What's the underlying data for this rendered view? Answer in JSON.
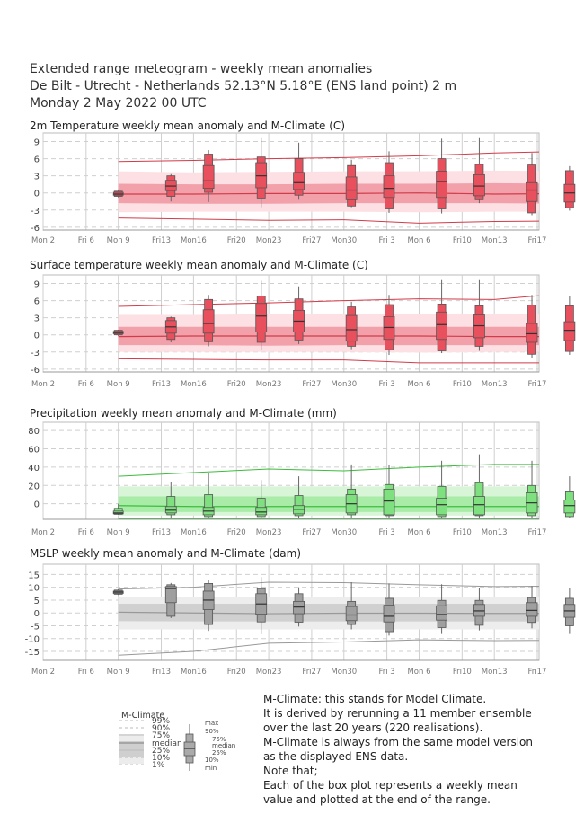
{
  "header": {
    "line1": "Extended range meteogram - weekly mean anomalies",
    "line2": "De Bilt - Utrecht - Netherlands 52.13°N 5.18°E (ENS land point) 2 m",
    "line3": "Monday  2 May 2022 00 UTC"
  },
  "x_ticks": [
    "Mon 2",
    "Fri 6",
    "Mon 9",
    "Fri13",
    "Mon16",
    "Fri20",
    "Mon23",
    "Fri27",
    "Mon30",
    "Fri 3",
    "Mon 6",
    "Fri10",
    "Mon13",
    "Fri17"
  ],
  "chart_data": [
    {
      "type": "boxplot",
      "title": "2m Temperature weekly mean anomaly and M-Climate (C)",
      "ylim": [
        -6.5,
        10.5
      ],
      "yticks": [
        -6,
        -3,
        0,
        3,
        6,
        9
      ],
      "colors": {
        "box": "#e8505e",
        "band_outer": "#fde0e3",
        "band_inner": "#f2a0aa",
        "line": "#d23c4a"
      },
      "mclimate": {
        "x": [
          2.0,
          4.0,
          6.0,
          8.0,
          10.0,
          12.0,
          14.0,
          16.0,
          18.0,
          20.0
        ],
        "p99": [
          -4.4,
          -4.6,
          -4.8,
          -4.7,
          -5.3,
          -5.0,
          -4.9,
          -5.0,
          -4.8,
          -4.6
        ],
        "p90": [
          3.8,
          3.6,
          3.7,
          3.8,
          3.8,
          3.9,
          3.8,
          3.9,
          3.8,
          3.9
        ],
        "p75": [
          1.6,
          1.5,
          1.5,
          1.6,
          1.6,
          1.7,
          1.6,
          1.6,
          1.6,
          1.6
        ],
        "median": [
          -0.2,
          -0.2,
          -0.1,
          -0.1,
          0.0,
          -0.2,
          -0.1,
          0.0,
          0.0,
          -0.1
        ],
        "p25": [
          -1.8,
          -1.9,
          -1.9,
          -1.8,
          -1.8,
          -1.8,
          -1.9,
          -1.8,
          -1.8,
          -1.8
        ],
        "p10": [
          -3.4,
          -3.3,
          -3.3,
          -3.3,
          -3.4,
          -3.3,
          -3.3,
          -3.4,
          -3.3,
          -3.3
        ],
        "p1": [
          5.5,
          5.7,
          6.0,
          6.2,
          6.5,
          7.0,
          7.3,
          6.8,
          6.6,
          7.0
        ]
      },
      "boxes": [
        {
          "x": 2.0,
          "min": -0.8,
          "p10": -0.6,
          "p25": -0.4,
          "median": -0.2,
          "p75": 0.1,
          "p90": 0.3,
          "max": 0.6
        },
        {
          "x": 3.4,
          "min": -1.5,
          "p10": -0.6,
          "p25": 0.4,
          "median": 1.2,
          "p75": 2.2,
          "p90": 3.0,
          "max": 3.3
        },
        {
          "x": 4.4,
          "min": -1.6,
          "p10": 0.1,
          "p25": 0.8,
          "median": 2.1,
          "p75": 4.8,
          "p90": 6.8,
          "max": 7.5
        },
        {
          "x": 5.8,
          "min": -2.5,
          "p10": -0.9,
          "p25": 0.9,
          "median": 3.0,
          "p75": 5.3,
          "p90": 6.3,
          "max": 9.6
        },
        {
          "x": 6.8,
          "min": -1.2,
          "p10": -0.4,
          "p25": 0.6,
          "median": 1.8,
          "p75": 3.6,
          "p90": 6.0,
          "max": 8.8
        },
        {
          "x": 8.2,
          "min": -2.5,
          "p10": -2.3,
          "p25": -1.2,
          "median": 0.5,
          "p75": 2.8,
          "p90": 4.8,
          "max": 5.8
        },
        {
          "x": 9.2,
          "min": -3.5,
          "p10": -2.8,
          "p25": -0.8,
          "median": 0.8,
          "p75": 3.0,
          "p90": 5.3,
          "max": 7.3
        },
        {
          "x": 10.6,
          "min": -3.6,
          "p10": -2.8,
          "p25": -0.8,
          "median": 2.0,
          "p75": 3.8,
          "p90": 6.0,
          "max": 9.5
        },
        {
          "x": 11.6,
          "min": -1.8,
          "p10": -1.2,
          "p25": -0.5,
          "median": 1.2,
          "p75": 3.2,
          "p90": 5.0,
          "max": 9.6
        },
        {
          "x": 13.0,
          "min": -3.9,
          "p10": -3.5,
          "p25": -1.5,
          "median": 0.5,
          "p75": 1.8,
          "p90": 4.9,
          "max": 7.0
        },
        {
          "x": 14.0,
          "min": -3.1,
          "p10": -2.6,
          "p25": -1.6,
          "median": 0.0,
          "p75": 1.5,
          "p90": 3.9,
          "max": 4.7
        },
        {
          "x": 15.0,
          "min": -2.7,
          "p10": -2.4,
          "p25": -1.6,
          "median": -0.5,
          "p75": 1.0,
          "p90": 4.0,
          "max": 8.9
        }
      ]
    },
    {
      "type": "boxplot",
      "title": "Surface temperature weekly mean anomaly and M-Climate (C)",
      "ylim": [
        -6.5,
        10.5
      ],
      "yticks": [
        -6,
        -3,
        0,
        3,
        6,
        9
      ],
      "colors": {
        "box": "#e8505e",
        "band_outer": "#fde0e3",
        "band_inner": "#f2a0aa",
        "line": "#d23c4a"
      },
      "mclimate": {
        "x": [
          2.0,
          4.0,
          6.0,
          8.0,
          10.0,
          12.0,
          14.0,
          16.0,
          18.0,
          20.0
        ],
        "p99": [
          -4.2,
          -4.3,
          -4.4,
          -4.4,
          -4.9,
          -4.9,
          -4.9,
          -4.9,
          -4.7,
          -4.5
        ],
        "p90": [
          3.5,
          3.5,
          3.6,
          3.6,
          3.7,
          3.7,
          3.6,
          3.6,
          3.6,
          3.6
        ],
        "p75": [
          1.4,
          1.4,
          1.4,
          1.4,
          1.4,
          1.4,
          1.4,
          1.4,
          1.4,
          1.4
        ],
        "median": [
          -0.3,
          -0.2,
          -0.2,
          -0.2,
          -0.2,
          -0.3,
          -0.3,
          -0.2,
          -0.2,
          -0.3
        ],
        "p25": [
          -1.8,
          -1.8,
          -1.9,
          -1.8,
          -1.8,
          -1.8,
          -1.8,
          -1.8,
          -1.8,
          -1.8
        ],
        "p10": [
          -3.0,
          -3.0,
          -3.0,
          -3.0,
          -3.1,
          -3.0,
          -3.0,
          -3.0,
          -3.0,
          -3.0
        ],
        "p1": [
          5.0,
          5.3,
          5.6,
          6.0,
          6.3,
          6.2,
          7.3,
          6.6,
          6.9,
          6.5
        ]
      },
      "boxes": [
        {
          "x": 2.0,
          "min": -0.2,
          "p10": 0.0,
          "p25": 0.2,
          "median": 0.4,
          "p75": 0.6,
          "p90": 0.8,
          "max": 0.9
        },
        {
          "x": 3.4,
          "min": -1.3,
          "p10": -0.8,
          "p25": 0.3,
          "median": 1.4,
          "p75": 2.5,
          "p90": 3.0,
          "max": 3.2
        },
        {
          "x": 4.4,
          "min": -2.0,
          "p10": -1.2,
          "p25": 0.3,
          "median": 2.0,
          "p75": 4.4,
          "p90": 6.2,
          "max": 7.0
        },
        {
          "x": 5.8,
          "min": -2.6,
          "p10": -1.3,
          "p25": 0.5,
          "median": 3.3,
          "p75": 5.5,
          "p90": 6.8,
          "max": 9.5
        },
        {
          "x": 6.8,
          "min": -1.6,
          "p10": -0.9,
          "p25": 0.5,
          "median": 2.4,
          "p75": 4.3,
          "p90": 6.3,
          "max": 8.5
        },
        {
          "x": 8.2,
          "min": -2.5,
          "p10": -2.0,
          "p25": -1.1,
          "median": 0.9,
          "p75": 3.4,
          "p90": 4.9,
          "max": 5.8
        },
        {
          "x": 9.2,
          "min": -3.5,
          "p10": -2.6,
          "p25": -0.8,
          "median": 1.3,
          "p75": 3.2,
          "p90": 5.3,
          "max": 7.0
        },
        {
          "x": 10.6,
          "min": -3.2,
          "p10": -2.8,
          "p25": -0.8,
          "median": 1.8,
          "p75": 4.0,
          "p90": 5.4,
          "max": 9.6
        },
        {
          "x": 11.6,
          "min": -2.8,
          "p10": -2.0,
          "p25": -0.5,
          "median": 1.6,
          "p75": 3.5,
          "p90": 5.1,
          "max": 9.6
        },
        {
          "x": 13.0,
          "min": -4.0,
          "p10": -3.4,
          "p25": -1.3,
          "median": 0.2,
          "p75": 2.0,
          "p90": 5.2,
          "max": 7.0
        },
        {
          "x": 14.0,
          "min": -3.5,
          "p10": -2.9,
          "p25": -1.0,
          "median": 0.8,
          "p75": 2.3,
          "p90": 5.1,
          "max": 6.8
        },
        {
          "x": 15.0,
          "min": -3.4,
          "p10": -2.5,
          "p25": -1.7,
          "median": 0.4,
          "p75": 2.3,
          "p90": 4.4,
          "max": 9.0
        }
      ]
    },
    {
      "type": "boxplot",
      "title": "Precipitation weekly mean anomaly and M-Climate (mm)",
      "ylim": [
        -17,
        89
      ],
      "yticks": [
        0,
        20,
        40,
        60,
        80
      ],
      "colors": {
        "box": "#7ee07e",
        "band_outer": "#d8f5d8",
        "band_inner": "#a8eca8",
        "line": "#3cbd3c"
      },
      "mclimate": {
        "x": [
          2.0,
          4.0,
          6.0,
          8.0,
          10.0,
          12.0,
          14.0,
          16.0,
          18.0,
          20.0
        ],
        "p99": [
          -16,
          -16,
          -16,
          -16,
          -16,
          -16,
          -16,
          -16,
          -16,
          -16
        ],
        "p90": [
          19,
          19,
          19,
          19,
          19,
          19,
          19,
          19,
          19,
          19
        ],
        "p75": [
          8,
          8,
          8,
          8,
          8,
          8,
          8,
          8,
          8,
          8
        ],
        "median": [
          -2,
          -3,
          -3,
          -3,
          -3,
          -3,
          -3,
          -3,
          -3,
          -3
        ],
        "p25": [
          -9,
          -9,
          -9,
          -9,
          -9,
          -9,
          -9,
          -9,
          -9,
          -9
        ],
        "p10": [
          -13,
          -13,
          -13,
          -13,
          -13,
          -13,
          -13,
          -13,
          -13,
          -13
        ],
        "p1": [
          30,
          34,
          38,
          36,
          40,
          43,
          43,
          45,
          44,
          41
        ]
      },
      "boxes": [
        {
          "x": 2.0,
          "min": -12,
          "p10": -11.5,
          "p25": -11,
          "median": -10,
          "p75": -8,
          "p90": -5,
          "max": 0
        },
        {
          "x": 3.4,
          "min": -16,
          "p10": -12,
          "p25": -10,
          "median": -7,
          "p75": -3,
          "p90": 8,
          "max": 24
        },
        {
          "x": 4.4,
          "min": -16,
          "p10": -14,
          "p25": -12,
          "median": -8,
          "p75": -4,
          "p90": 10,
          "max": 34
        },
        {
          "x": 5.8,
          "min": -16,
          "p10": -14,
          "p25": -12,
          "median": -9,
          "p75": -4,
          "p90": 6,
          "max": 26
        },
        {
          "x": 6.8,
          "min": -16,
          "p10": -13,
          "p25": -11,
          "median": -6,
          "p75": -2,
          "p90": 9,
          "max": 30
        },
        {
          "x": 8.2,
          "min": -16,
          "p10": -12,
          "p25": -10,
          "median": 0,
          "p75": 10,
          "p90": 16,
          "max": 43
        },
        {
          "x": 9.2,
          "min": -16,
          "p10": -13,
          "p25": -12,
          "median": 3,
          "p75": 16,
          "p90": 21,
          "max": 42
        },
        {
          "x": 10.6,
          "min": -16,
          "p10": -14,
          "p25": -12,
          "median": -1,
          "p75": 6,
          "p90": 19,
          "max": 47
        },
        {
          "x": 11.6,
          "min": -16,
          "p10": -13,
          "p25": -12,
          "median": -1,
          "p75": 8,
          "p90": 23,
          "max": 54
        },
        {
          "x": 13.0,
          "min": -16,
          "p10": -13,
          "p25": -10,
          "median": 1,
          "p75": 12,
          "p90": 20,
          "max": 47
        },
        {
          "x": 14.0,
          "min": -16,
          "p10": -14,
          "p25": -10,
          "median": -2,
          "p75": 4,
          "p90": 13,
          "max": 30
        },
        {
          "x": 15.0,
          "min": -16,
          "p10": -14,
          "p25": -11,
          "median": -7,
          "p75": 6,
          "p90": 16,
          "max": 35
        }
      ]
    },
    {
      "type": "boxplot",
      "title": "MSLP weekly mean anomaly and M-Climate (dam)",
      "ylim": [
        -18.5,
        19
      ],
      "yticks": [
        -15,
        -10,
        -5,
        0,
        5,
        10,
        15
      ],
      "colors": {
        "box": "#9f9f9f",
        "band_outer": "#ededed",
        "band_inner": "#d0d0d0",
        "line": "#999999"
      },
      "mclimate": {
        "x": [
          2.0,
          4.0,
          6.0,
          8.0,
          10.0,
          12.0,
          14.0,
          16.0,
          18.0,
          20.0
        ],
        "p99": [
          -16.5,
          -15.0,
          -11.8,
          -11.3,
          -10.5,
          -10.8,
          -10.6,
          -10.2,
          -12.3,
          -10.8
        ],
        "p90": [
          6.4,
          6.4,
          6.4,
          6.4,
          6.4,
          6.4,
          6.4,
          6.4,
          6.4,
          6.4
        ],
        "p75": [
          3.6,
          3.6,
          3.6,
          3.6,
          3.6,
          3.6,
          3.6,
          3.6,
          3.6,
          3.6
        ],
        "median": [
          0.3,
          0.0,
          -0.3,
          -0.1,
          -0.1,
          -0.2,
          -0.2,
          0.0,
          0.0,
          0.0
        ],
        "p25": [
          -3.2,
          -3.3,
          -3.3,
          -3.3,
          -3.3,
          -3.3,
          -3.3,
          -3.3,
          -3.3,
          -3.3
        ],
        "p10": [
          -6.4,
          -6.4,
          -6.4,
          -6.4,
          -6.4,
          -6.4,
          -6.4,
          -6.4,
          -6.4,
          -6.4
        ],
        "p1": [
          9.3,
          10.0,
          12.0,
          11.8,
          11.0,
          10.3,
          10.5,
          10.5,
          8.5,
          10.0
        ]
      },
      "boxes": [
        {
          "x": 2.0,
          "min": 7.0,
          "p10": 7.3,
          "p25": 7.6,
          "median": 8.1,
          "p75": 8.5,
          "p90": 8.9,
          "max": 9.2
        },
        {
          "x": 3.4,
          "min": -2.0,
          "p10": -1.3,
          "p25": 4.0,
          "median": 9.5,
          "p75": 10.3,
          "p90": 11.0,
          "max": 11.7
        },
        {
          "x": 4.4,
          "min": -7.0,
          "p10": -4.5,
          "p25": 1.3,
          "median": 5.0,
          "p75": 8.5,
          "p90": 11.5,
          "max": 12.7
        },
        {
          "x": 5.8,
          "min": -8.3,
          "p10": -3.5,
          "p25": -0.5,
          "median": 3.5,
          "p75": 7.5,
          "p90": 9.5,
          "max": 14.0
        },
        {
          "x": 6.8,
          "min": -5.3,
          "p10": -3.6,
          "p25": -0.3,
          "median": 2.3,
          "p75": 4.5,
          "p90": 7.5,
          "max": 10.0
        },
        {
          "x": 8.2,
          "min": -6.4,
          "p10": -4.5,
          "p25": -3.0,
          "median": -0.8,
          "p75": 2.5,
          "p90": 4.5,
          "max": 12.0
        },
        {
          "x": 9.2,
          "min": -8.8,
          "p10": -7.3,
          "p25": -3.5,
          "median": -1.3,
          "p75": 3.0,
          "p90": 5.7,
          "max": 11.5
        },
        {
          "x": 10.6,
          "min": -8.2,
          "p10": -5.7,
          "p25": -2.8,
          "median": -0.6,
          "p75": 2.8,
          "p90": 4.9,
          "max": 11.2
        },
        {
          "x": 11.6,
          "min": -6.8,
          "p10": -4.8,
          "p25": -1.3,
          "median": 0.8,
          "p75": 3.3,
          "p90": 4.9,
          "max": 9.7
        },
        {
          "x": 13.0,
          "min": -6.0,
          "p10": -3.7,
          "p25": -1.3,
          "median": 1.0,
          "p75": 4.0,
          "p90": 6.0,
          "max": 10.5
        },
        {
          "x": 14.0,
          "min": -8.2,
          "p10": -5.0,
          "p25": -1.7,
          "median": 0.8,
          "p75": 3.3,
          "p90": 5.7,
          "max": 9.7
        },
        {
          "x": 15.0,
          "min": -7.8,
          "p10": -7.5,
          "p25": -3.8,
          "median": -1.3,
          "p75": 3.0,
          "p90": 4.5,
          "max": 9.8
        }
      ]
    }
  ],
  "legend": {
    "mclimate_title": "M-Climate",
    "mclimate_labels": [
      "99%",
      "90%",
      "75%",
      "median",
      "25%",
      "10%",
      "1%"
    ],
    "box_labels": [
      "max",
      "90%",
      "75%",
      "median",
      "25%",
      "10%",
      "min"
    ]
  },
  "notes": [
    "M-Climate: this stands for Model Climate.",
    "It is derived by rerunning a 11 member ensemble",
    "over the last 20 years  (220 realisations).",
    "M-Climate is always from the same model version",
    "as the displayed ENS data.",
    "Note that;",
    "Each of the box plot represents a weekly mean",
    "value and plotted at the end of the range."
  ]
}
